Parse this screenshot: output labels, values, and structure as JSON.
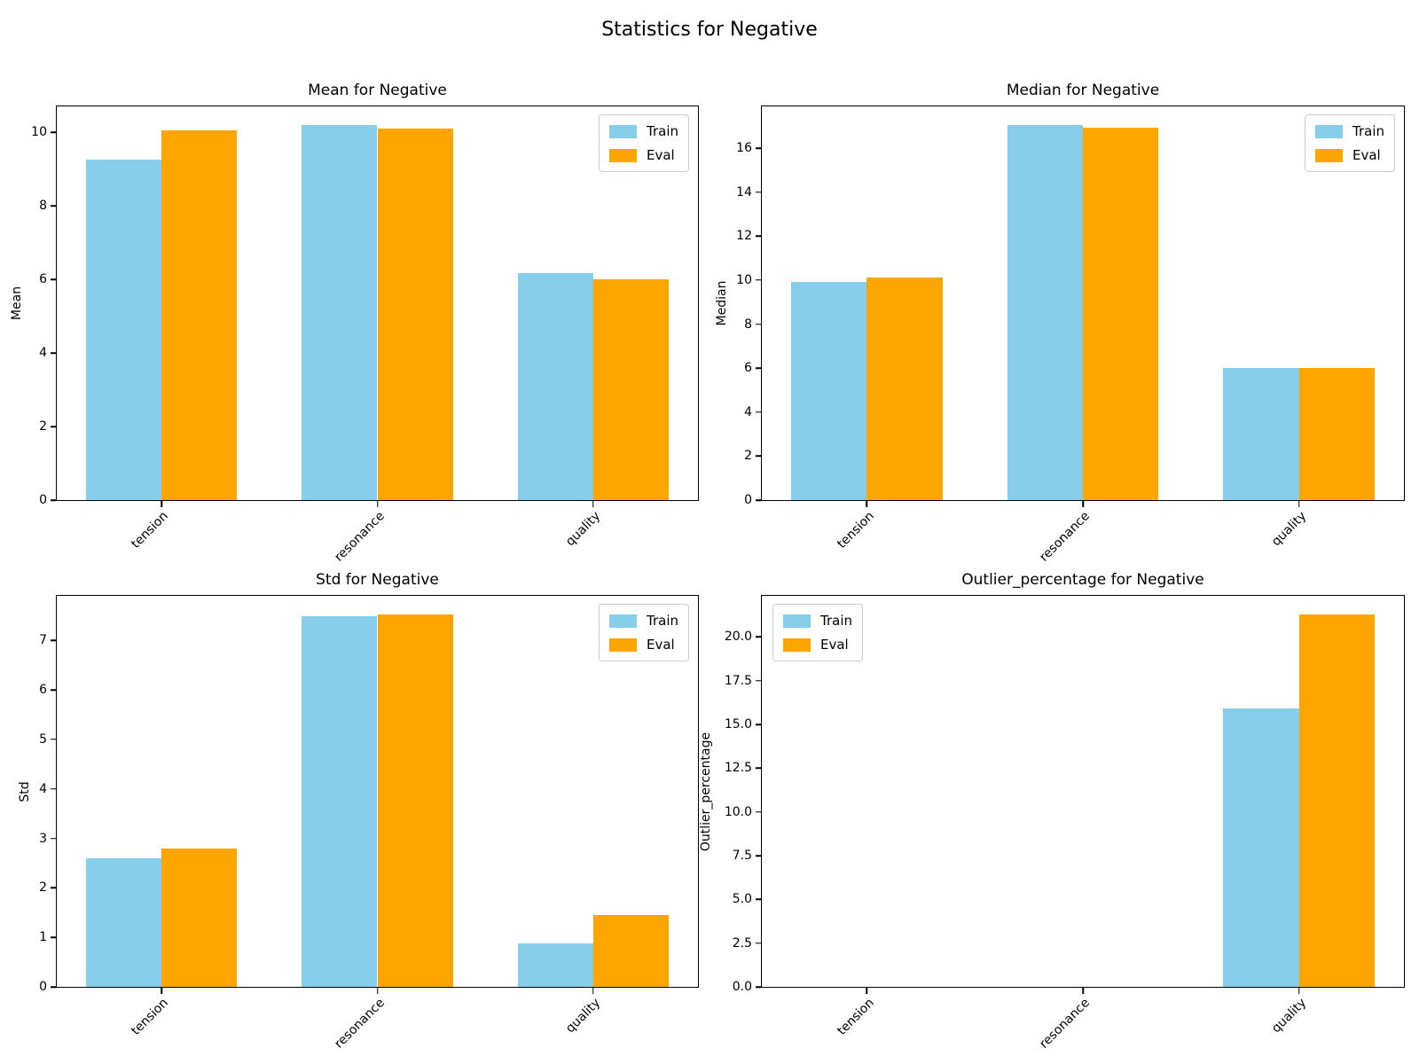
{
  "figure": {
    "suptitle": "Statistics for Negative",
    "colors": {
      "train": "#87CEEB",
      "eval": "#FFA500"
    }
  },
  "chart_data": [
    {
      "type": "bar",
      "title": "Mean for Negative",
      "xlabel": "",
      "ylabel": "Mean",
      "categories": [
        "tension",
        "resonance",
        "quality"
      ],
      "series": [
        {
          "name": "Train",
          "color": "#87CEEB",
          "values": [
            9.25,
            10.2,
            6.17
          ]
        },
        {
          "name": "Eval",
          "color": "#FFA500",
          "values": [
            10.05,
            10.1,
            6.0
          ]
        }
      ],
      "bar_width": 0.35,
      "ylim": [
        0,
        10.7
      ],
      "yticks": [
        0,
        2,
        4,
        6,
        8,
        10
      ],
      "ytick_labels": [
        "0",
        "2",
        "4",
        "6",
        "8",
        "10"
      ],
      "legend_loc": "top-right",
      "grid": false
    },
    {
      "type": "bar",
      "title": "Median for Negative",
      "xlabel": "",
      "ylabel": "Median",
      "categories": [
        "tension",
        "resonance",
        "quality"
      ],
      "series": [
        {
          "name": "Train",
          "color": "#87CEEB",
          "values": [
            9.9,
            17.05,
            6.0
          ]
        },
        {
          "name": "Eval",
          "color": "#FFA500",
          "values": [
            10.1,
            16.95,
            6.0
          ]
        }
      ],
      "bar_width": 0.35,
      "ylim": [
        0,
        17.9
      ],
      "yticks": [
        0,
        2,
        4,
        6,
        8,
        10,
        12,
        14,
        16
      ],
      "ytick_labels": [
        "0",
        "2",
        "4",
        "6",
        "8",
        "10",
        "12",
        "14",
        "16"
      ],
      "legend_loc": "top-right",
      "grid": false
    },
    {
      "type": "bar",
      "title": "Std for Negative",
      "xlabel": "",
      "ylabel": "Std",
      "categories": [
        "tension",
        "resonance",
        "quality"
      ],
      "series": [
        {
          "name": "Train",
          "color": "#87CEEB",
          "values": [
            2.6,
            7.48,
            0.88
          ]
        },
        {
          "name": "Eval",
          "color": "#FFA500",
          "values": [
            2.8,
            7.53,
            1.45
          ]
        }
      ],
      "bar_width": 0.35,
      "ylim": [
        0,
        7.9
      ],
      "yticks": [
        0,
        1,
        2,
        3,
        4,
        5,
        6,
        7
      ],
      "ytick_labels": [
        "0",
        "1",
        "2",
        "3",
        "4",
        "5",
        "6",
        "7"
      ],
      "legend_loc": "top-right",
      "grid": false
    },
    {
      "type": "bar",
      "title": "Outlier_percentage for Negative",
      "xlabel": "",
      "ylabel": "Outlier_percentage",
      "categories": [
        "tension",
        "resonance",
        "quality"
      ],
      "series": [
        {
          "name": "Train",
          "color": "#87CEEB",
          "values": [
            0,
            0,
            15.9
          ]
        },
        {
          "name": "Eval",
          "color": "#FFA500",
          "values": [
            0,
            0,
            21.3
          ]
        }
      ],
      "bar_width": 0.35,
      "ylim": [
        0,
        22.35
      ],
      "yticks": [
        0,
        2.5,
        5,
        7.5,
        10,
        12.5,
        15,
        17.5,
        20
      ],
      "ytick_labels": [
        "0.0",
        "2.5",
        "5.0",
        "7.5",
        "10.0",
        "12.5",
        "15.0",
        "17.5",
        "20.0"
      ],
      "legend_loc": "top-left",
      "grid": false
    }
  ]
}
